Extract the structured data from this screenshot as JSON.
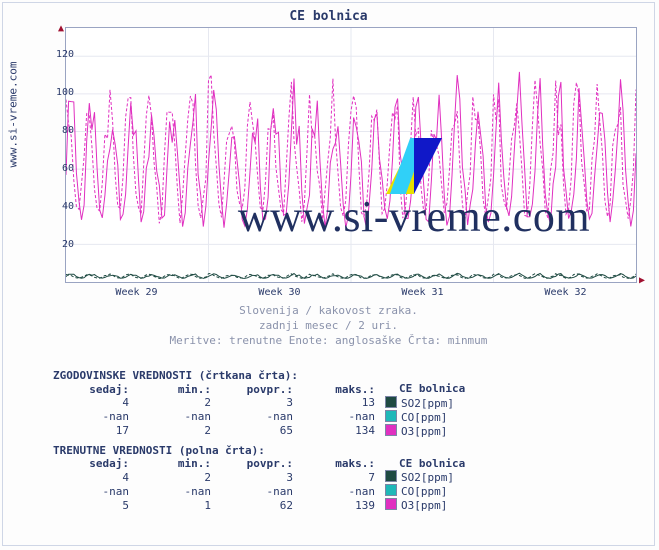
{
  "site_label": "www.si-vreme.com",
  "watermark_text": "www.si-vreme.com",
  "chart": {
    "title": "CE bolnica",
    "type": "line",
    "background_color": "#ffffff",
    "grid_color": "#e6e8f0",
    "axis_color": "#9aa4c2",
    "arrow_color": "#a01030",
    "title_fontsize": 13,
    "tick_fontsize": 10,
    "ylim": [
      0,
      135
    ],
    "yticks": [
      20,
      40,
      60,
      80,
      100,
      120
    ],
    "xticks": [
      "Week 29",
      "Week 30",
      "Week 31",
      "Week 32"
    ],
    "series": [
      {
        "name": "SO2[ppm]",
        "color": "#1e4a42",
        "solid_avg": 3,
        "dash_avg": 3,
        "amp": 2
      },
      {
        "name": "CO[ppm]",
        "color": "#1fb8b8",
        "solid_avg": 0,
        "dash_avg": 0,
        "amp": 0
      },
      {
        "name": "O3[ppm]",
        "color": "#e030c0",
        "solid_avg": 62,
        "dash_avg": 65,
        "amp": 60
      }
    ]
  },
  "subtitles": {
    "line1": "Slovenija / kakovost zraka.",
    "line2": "zadnji mesec / 2 uri.",
    "line3": "Meritve: trenutne  Enote: anglosaške  Črta: minmum"
  },
  "tables": {
    "hist_title": "ZGODOVINSKE VREDNOSTI (črtkana črta):",
    "curr_title": "TRENUTNE VREDNOSTI (polna črta):",
    "headers": {
      "now": "sedaj:",
      "min": "min.:",
      "avg": "povpr.:",
      "max": "maks.:",
      "name": "CE bolnica"
    },
    "hist_rows": [
      {
        "now": "4",
        "min": "2",
        "avg": "3",
        "max": "13",
        "label": "SO2[ppm]",
        "color": "#1e4a42"
      },
      {
        "now": "-nan",
        "min": "-nan",
        "avg": "-nan",
        "max": "-nan",
        "label": "CO[ppm]",
        "color": "#1fb8b8"
      },
      {
        "now": "17",
        "min": "2",
        "avg": "65",
        "max": "134",
        "label": "O3[ppm]",
        "color": "#e030c0"
      }
    ],
    "curr_rows": [
      {
        "now": "4",
        "min": "2",
        "avg": "3",
        "max": "7",
        "label": "SO2[ppm]",
        "color": "#1e4a42"
      },
      {
        "now": "-nan",
        "min": "-nan",
        "avg": "-nan",
        "max": "-nan",
        "label": "CO[ppm]",
        "color": "#1fb8b8"
      },
      {
        "now": "5",
        "min": "1",
        "avg": "62",
        "max": "139",
        "label": "O3[ppm]",
        "color": "#e030c0"
      }
    ]
  }
}
